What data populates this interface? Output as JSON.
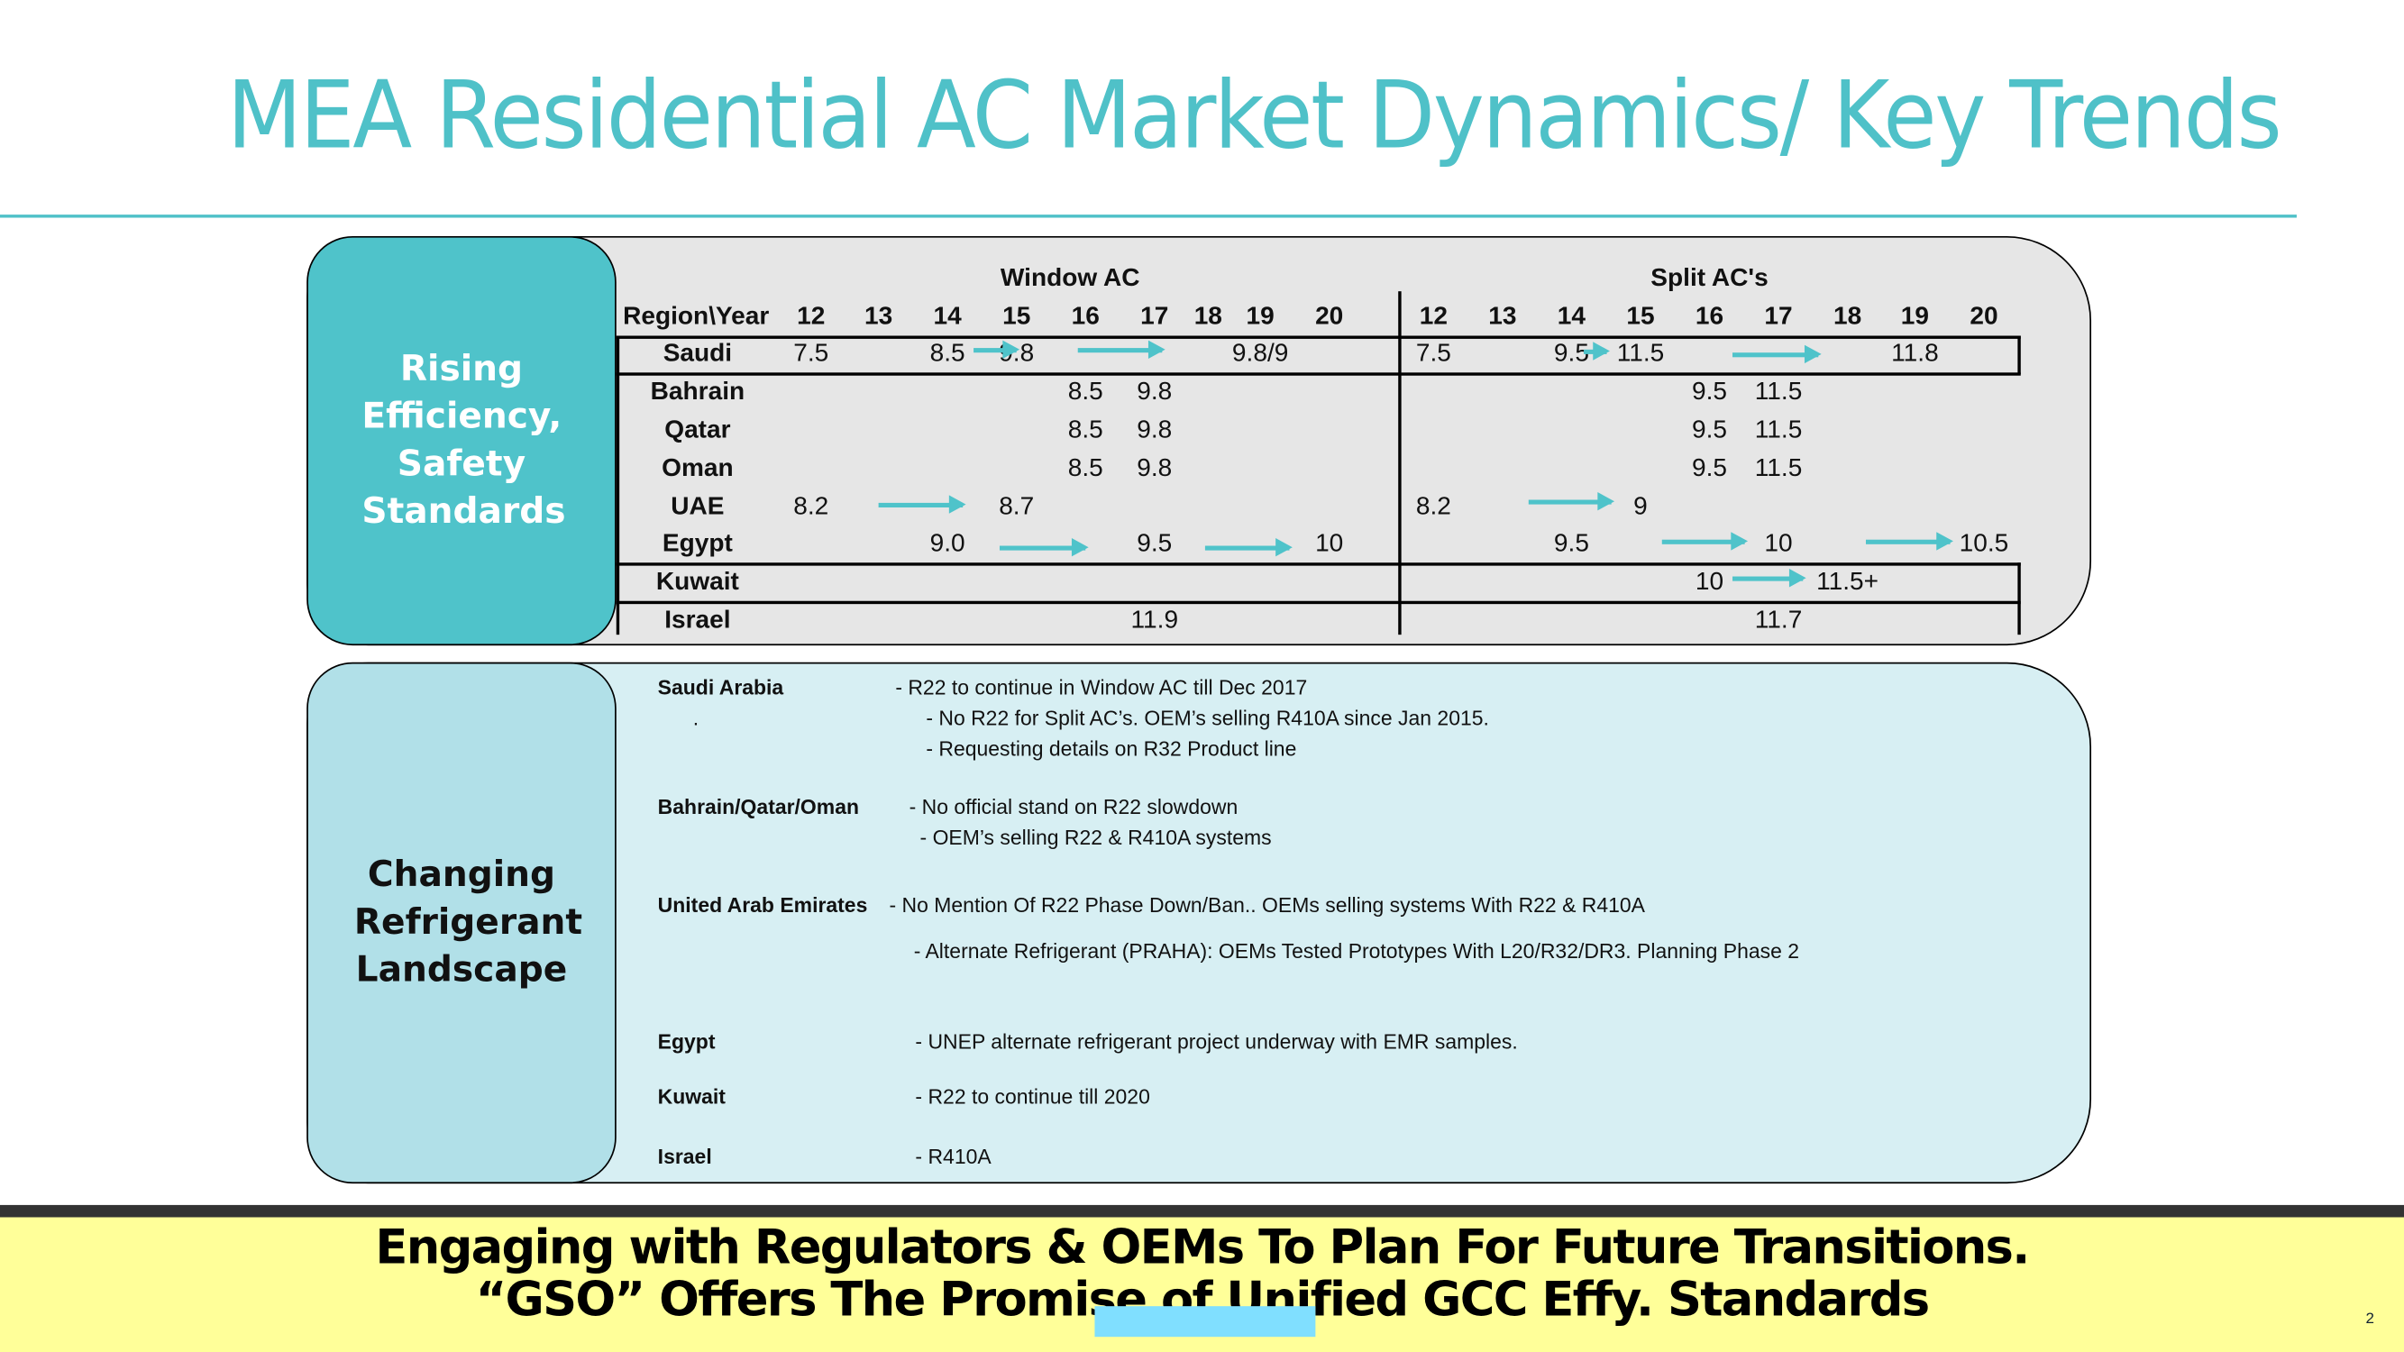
{
  "title": "MEA Residential AC Market Dynamics/ Key Trends",
  "efficiency_section": {
    "label": "Rising Efficiency, Safety Standards",
    "table": {
      "window_header": "Window AC",
      "split_header": "Split AC's",
      "region_header": "Region\\Year",
      "years": [
        "12",
        "13",
        "14",
        "15",
        "16",
        "17",
        "18",
        "19",
        "20"
      ],
      "rows": [
        {
          "region": "Saudi",
          "window": [
            {
              "year": "12",
              "value": "7.5"
            },
            {
              "year": "14",
              "value": "8.5"
            },
            {
              "year": "15",
              "value": "9.8"
            },
            {
              "year": "19",
              "value": "9.8/9"
            }
          ],
          "split": [
            {
              "year": "12",
              "value": "7.5"
            },
            {
              "year": "14",
              "value": "9.5"
            },
            {
              "year": "15",
              "value": "11.5"
            },
            {
              "year": "19",
              "value": "11.8"
            }
          ]
        },
        {
          "region": "Bahrain",
          "window": [
            {
              "year": "16",
              "value": "8.5"
            },
            {
              "year": "17",
              "value": "9.8"
            }
          ],
          "split": [
            {
              "year": "16",
              "value": "9.5"
            },
            {
              "year": "17",
              "value": "11.5"
            }
          ]
        },
        {
          "region": "Qatar",
          "window": [
            {
              "year": "16",
              "value": "8.5"
            },
            {
              "year": "17",
              "value": "9.8"
            }
          ],
          "split": [
            {
              "year": "16",
              "value": "9.5"
            },
            {
              "year": "17",
              "value": "11.5"
            }
          ]
        },
        {
          "region": "Oman",
          "window": [
            {
              "year": "16",
              "value": "8.5"
            },
            {
              "year": "17",
              "value": "9.8"
            }
          ],
          "split": [
            {
              "year": "16",
              "value": "9.5"
            },
            {
              "year": "17",
              "value": "11.5"
            }
          ]
        },
        {
          "region": "UAE",
          "window": [
            {
              "year": "12",
              "value": "8.2"
            },
            {
              "year": "15",
              "value": "8.7"
            }
          ],
          "split": [
            {
              "year": "12",
              "value": "8.2"
            },
            {
              "year": "15",
              "value": "9"
            }
          ]
        },
        {
          "region": "Egypt",
          "window": [
            {
              "year": "14",
              "value": "9.0"
            },
            {
              "year": "17",
              "value": "9.5"
            },
            {
              "year": "20",
              "value": "10"
            }
          ],
          "split": [
            {
              "year": "14",
              "value": "9.5"
            },
            {
              "year": "17",
              "value": "10"
            },
            {
              "year": "20",
              "value": "10.5"
            }
          ]
        },
        {
          "region": "Kuwait",
          "window": [],
          "split": [
            {
              "year": "16",
              "value": "10"
            },
            {
              "year": "18",
              "value": "11.5+"
            }
          ]
        },
        {
          "region": "Israel",
          "window": [
            {
              "year": "17",
              "value": "11.9"
            }
          ],
          "split": [
            {
              "year": "17",
              "value": "11.7"
            }
          ]
        }
      ]
    }
  },
  "refrigerant_section": {
    "label": "Changing Refrigerant Landscape",
    "notes": [
      {
        "region": "Saudi Arabia",
        "lines": [
          "- R22 to continue in Window AC till Dec 2017",
          "- No R22 for Split AC’s. OEM’s selling R410A since Jan 2015.",
          "- Requesting details on R32 Product line"
        ],
        "marker": "."
      },
      {
        "region": "Bahrain/Qatar/Oman",
        "lines": [
          "- No official stand on R22 slowdown",
          "- OEM’s selling R22 & R410A systems"
        ]
      },
      {
        "region": "United Arab Emirates",
        "lines": [
          "- No Mention Of R22 Phase Down/Ban.. OEMs selling systems With R22 & R410A",
          "- Alternate Refrigerant (PRAHA): OEMs Tested Prototypes With L20/R32/DR3. Planning Phase 2"
        ]
      },
      {
        "region": "Egypt",
        "lines": [
          "- UNEP alternate refrigerant project underway with EMR samples."
        ]
      },
      {
        "region": "Kuwait",
        "lines": [
          "- R22 to continue till 2020"
        ]
      },
      {
        "region": "Israel",
        "lines": [
          "- R410A"
        ]
      }
    ]
  },
  "banner": {
    "line1": "Engaging with Regulators & OEMs To Plan For Future Transitions.",
    "line2": "“GSO” Offers The Promise of Unified GCC Effy. Standards"
  },
  "page_number": "2",
  "colors": {
    "accent": "#4fc1c8",
    "banner": "#ffff99",
    "top_panel": "#e6e6e6",
    "bottom_panel": "#d7eff3"
  }
}
